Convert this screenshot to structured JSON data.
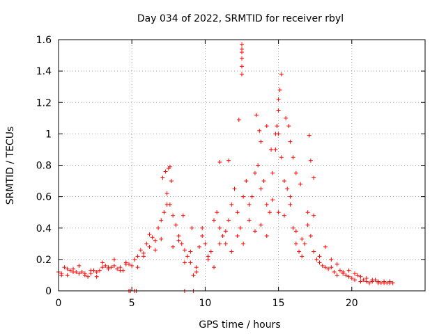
{
  "chart_data": {
    "type": "scatter",
    "title": "Day 034 of 2022, SRMTID for receiver rbyl",
    "xlabel": "GPS time / hours",
    "ylabel": "SRMTID / TECUs",
    "xlim": [
      0,
      25
    ],
    "ylim": [
      0,
      1.6
    ],
    "xticks": [
      0,
      5,
      10,
      15,
      20
    ],
    "xtick_labels": [
      "0",
      "5",
      "10",
      "15",
      "20"
    ],
    "yticks": [
      0,
      0.2,
      0.4,
      0.6,
      0.8,
      1,
      1.2,
      1.4,
      1.6
    ],
    "ytick_labels": [
      "0",
      "0.2",
      "0.4",
      "0.6",
      "0.8",
      "1",
      "1.2",
      "1.4",
      "1.6"
    ],
    "grid": true,
    "marker": "+",
    "color": "#ff0000",
    "series": [
      {
        "name": "SRMTID",
        "x": [
          0.0,
          0.2,
          0.4,
          0.6,
          0.8,
          1.0,
          1.2,
          1.4,
          1.6,
          1.8,
          2.0,
          2.2,
          2.4,
          2.6,
          2.8,
          3.0,
          3.2,
          3.4,
          3.6,
          3.8,
          4.0,
          4.2,
          4.4,
          4.6,
          4.8,
          5.0,
          5.2,
          5.4,
          5.6,
          5.8,
          6.0,
          6.2,
          6.4,
          6.6,
          6.8,
          7.0,
          7.2,
          7.4,
          7.6,
          7.8,
          8.0,
          8.2,
          8.4,
          8.6,
          8.8,
          9.0,
          9.2,
          9.4,
          9.6,
          9.8,
          10.0,
          10.2,
          10.4,
          10.6,
          10.8,
          11.0,
          11.2,
          11.4,
          11.6,
          11.8,
          12.0,
          12.2,
          12.4,
          12.6,
          12.8,
          13.0,
          13.2,
          13.4,
          13.6,
          13.8,
          14.0,
          14.2,
          14.4,
          14.6,
          14.8,
          15.0,
          15.2,
          15.4,
          15.6,
          15.8,
          16.0,
          16.2,
          16.4,
          16.6,
          16.8,
          17.0,
          17.2,
          17.4,
          17.6,
          17.8,
          18.0,
          18.2,
          18.4,
          18.6,
          18.8,
          19.0,
          19.2,
          19.4,
          19.6,
          19.8,
          20.0,
          20.2,
          20.4,
          20.6,
          20.8,
          21.0,
          21.2,
          21.4,
          21.6,
          21.8,
          22.0,
          22.2,
          22.4,
          22.6,
          22.8,
          7.1,
          7.3,
          7.5,
          7.6,
          7.7,
          8.5,
          9.1,
          11.0,
          11.6,
          12.3,
          12.5,
          12.5,
          12.5,
          12.5,
          12.5,
          12.5,
          13.5,
          13.7,
          13.8,
          14.2,
          14.5,
          14.8,
          14.9,
          15.0,
          15.0,
          15.1,
          15.2,
          15.5,
          15.7,
          15.8,
          16.0,
          16.2,
          16.5,
          17.1,
          17.2,
          17.4,
          0.2,
          0.6,
          1.0,
          1.4,
          1.8,
          2.2,
          2.6,
          3.0,
          3.4,
          3.8,
          4.2,
          4.6,
          5.4,
          5.8,
          6.2,
          6.6,
          7.0,
          7.4,
          7.8,
          8.2,
          8.6,
          9.0,
          9.4,
          9.8,
          10.2,
          10.6,
          11.0,
          11.4,
          11.8,
          12.2,
          12.6,
          13.0,
          13.4,
          13.8,
          14.2,
          14.6,
          15.0,
          15.4,
          15.8,
          16.2,
          16.6,
          17.0,
          17.4,
          17.8,
          18.2,
          18.6,
          19.0,
          19.4,
          19.8,
          20.2,
          20.6,
          21.0,
          21.4,
          21.8,
          22.2,
          22.6,
          4.8,
          4.9,
          5.2,
          5.3,
          8.6,
          9.2
        ],
        "y": [
          0.12,
          0.11,
          0.15,
          0.1,
          0.13,
          0.14,
          0.12,
          0.11,
          0.12,
          0.1,
          0.09,
          0.11,
          0.13,
          0.12,
          0.13,
          0.15,
          0.16,
          0.14,
          0.15,
          0.16,
          0.14,
          0.15,
          0.13,
          0.18,
          0.17,
          0.16,
          0.2,
          0.22,
          0.26,
          0.24,
          0.3,
          0.28,
          0.34,
          0.32,
          0.4,
          0.45,
          0.5,
          0.62,
          0.55,
          0.48,
          0.42,
          0.35,
          0.3,
          0.26,
          0.22,
          0.18,
          0.1,
          0.15,
          0.28,
          0.35,
          0.3,
          0.22,
          0.25,
          0.45,
          0.5,
          0.4,
          0.35,
          0.3,
          0.45,
          0.55,
          0.65,
          0.5,
          0.4,
          0.6,
          0.7,
          0.55,
          0.6,
          0.75,
          0.8,
          0.65,
          0.7,
          0.55,
          0.5,
          0.75,
          0.9,
          1.0,
          0.85,
          0.7,
          0.65,
          0.6,
          0.4,
          0.3,
          0.25,
          0.22,
          0.3,
          0.5,
          0.35,
          0.25,
          0.2,
          0.18,
          0.16,
          0.15,
          0.14,
          0.2,
          0.12,
          0.1,
          0.13,
          0.11,
          0.1,
          0.09,
          0.08,
          0.07,
          0.1,
          0.06,
          0.07,
          0.06,
          0.05,
          0.06,
          0.07,
          0.05,
          0.05,
          0.06,
          0.05,
          0.06,
          0.05,
          0.72,
          0.76,
          0.78,
          0.79,
          0.7,
          0.48,
          0.4,
          0.82,
          0.83,
          1.09,
          1.43,
          1.48,
          1.52,
          1.54,
          1.57,
          1.38,
          1.12,
          1.02,
          0.95,
          1.05,
          0.9,
          1.0,
          1.05,
          1.15,
          1.22,
          1.28,
          1.38,
          1.1,
          1.05,
          0.95,
          0.85,
          0.75,
          0.68,
          0.99,
          0.83,
          0.72,
          0.1,
          0.14,
          0.12,
          0.16,
          0.11,
          0.13,
          0.09,
          0.18,
          0.15,
          0.2,
          0.13,
          0.17,
          0.15,
          0.22,
          0.36,
          0.26,
          0.33,
          0.55,
          0.28,
          0.32,
          0.18,
          0.25,
          0.12,
          0.4,
          0.2,
          0.15,
          0.3,
          0.38,
          0.25,
          0.35,
          0.3,
          0.45,
          0.38,
          0.42,
          0.35,
          0.58,
          0.5,
          0.48,
          0.55,
          0.38,
          0.33,
          0.42,
          0.48,
          0.22,
          0.28,
          0.15,
          0.17,
          0.12,
          0.13,
          0.11,
          0.09,
          0.08,
          0.07,
          0.06,
          0.05,
          0.05,
          0.0,
          0.0,
          0.0,
          0.0,
          0.0,
          0.0
        ]
      }
    ]
  }
}
